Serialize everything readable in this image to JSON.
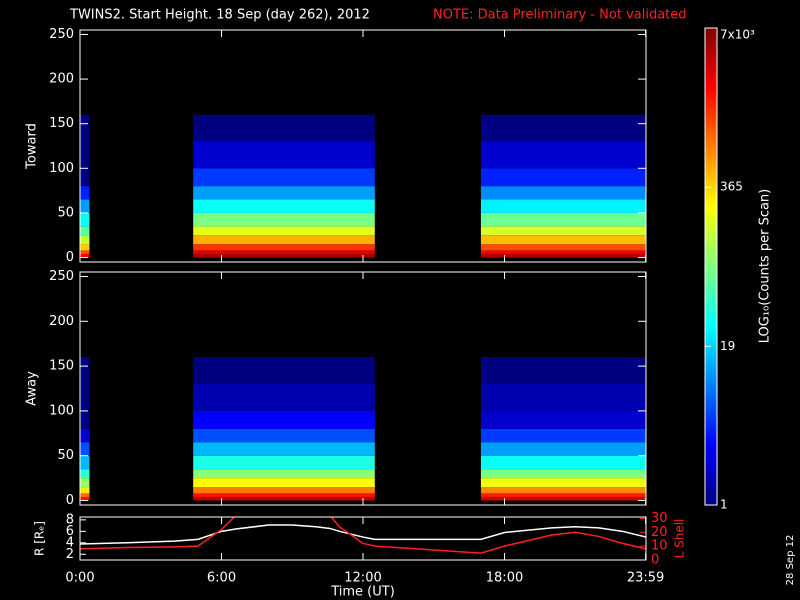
{
  "title": "TWINS2. Start Height. 18 Sep (day 262), 2012",
  "note": "NOTE: Data Preliminary - Not validated",
  "x_label": "Time (UT)",
  "date_stamp": "28 Sep 12",
  "colorbar": {
    "label": "LOG₁₀(Counts per Scan)",
    "log": true,
    "lim": [
      1,
      7000
    ],
    "ticks": [
      1,
      19,
      365,
      {
        "value": 7000,
        "label": "7x10³"
      }
    ]
  },
  "chart_data": [
    {
      "type": "heatmap",
      "y_label": "Toward",
      "xlim": [
        0,
        24
      ],
      "ylim": [
        -5,
        255
      ],
      "yticks": [
        0,
        50,
        100,
        150,
        200,
        250
      ],
      "time_intervals": [
        [
          0,
          0.4
        ],
        [
          4.8,
          12.5
        ],
        [
          17,
          24
        ]
      ],
      "height_bins": [
        0,
        4,
        8,
        15,
        25,
        35,
        50,
        65,
        80,
        100,
        130,
        160
      ],
      "values": [
        [
          2500,
          1200,
          400,
          150,
          60,
          30,
          12,
          4,
          1,
          1,
          1
        ],
        [
          5000,
          3000,
          1500,
          500,
          200,
          80,
          30,
          12,
          5,
          2,
          1
        ],
        [
          4500,
          2500,
          1200,
          450,
          180,
          70,
          25,
          10,
          4,
          2,
          1
        ]
      ]
    },
    {
      "type": "heatmap",
      "y_label": "Away",
      "xlim": [
        0,
        24
      ],
      "ylim": [
        -5,
        255
      ],
      "yticks": [
        0,
        50,
        100,
        150,
        200,
        250
      ],
      "time_intervals": [
        [
          0,
          0.4
        ],
        [
          4.8,
          12.5
        ],
        [
          17,
          24
        ]
      ],
      "height_bins": [
        0,
        4,
        8,
        15,
        25,
        35,
        50,
        65,
        80,
        100,
        130,
        160
      ],
      "values": [
        [
          2000,
          900,
          300,
          100,
          40,
          15,
          6,
          2,
          1,
          1,
          1
        ],
        [
          4000,
          2000,
          800,
          250,
          90,
          35,
          15,
          6,
          3,
          1.5,
          1
        ],
        [
          3500,
          1800,
          700,
          220,
          80,
          30,
          12,
          5,
          2,
          1.5,
          1
        ]
      ]
    },
    {
      "type": "line",
      "xlim": [
        0,
        24
      ],
      "xticks": [
        {
          "value": 0,
          "label": "0:00"
        },
        {
          "value": 6,
          "label": "6:00"
        },
        {
          "value": 12,
          "label": "12:00"
        },
        {
          "value": 18,
          "label": "18:00"
        },
        {
          "value": 23.983,
          "label": "23:59"
        }
      ],
      "ylim": [
        1,
        8.5
      ],
      "yticks": [
        2,
        4,
        6,
        8
      ],
      "y_label": "R [Rₑ]",
      "y2lim": [
        0,
        31
      ],
      "y2ticks": [
        0,
        10,
        20,
        30
      ],
      "y2_label": "L Shell",
      "x": [
        0,
        2,
        4,
        5,
        6,
        6.6,
        8,
        9,
        10,
        10.6,
        11,
        12,
        12.5,
        17,
        18,
        20,
        21,
        22,
        23,
        24
      ],
      "series": [
        {
          "name": "R",
          "color": "#ffffff",
          "values": [
            3.8,
            4.0,
            4.3,
            4.6,
            6.0,
            6.4,
            7.1,
            7.1,
            6.8,
            6.5,
            6.0,
            5.0,
            4.6,
            4.6,
            5.8,
            6.6,
            6.8,
            6.6,
            6.0,
            5.0
          ]
        },
        {
          "name": "L Shell",
          "color": "#ff2020",
          "axis": "y2",
          "values": [
            8,
            9,
            9.5,
            10,
            22,
            32,
            null,
            null,
            null,
            32,
            24,
            12,
            10,
            5,
            10,
            18,
            20,
            17,
            12,
            8
          ]
        }
      ]
    }
  ]
}
